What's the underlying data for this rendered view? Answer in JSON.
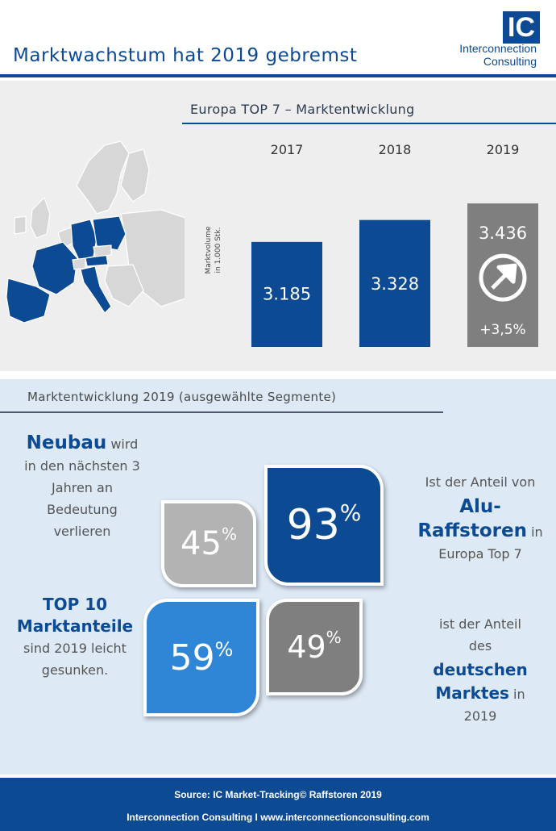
{
  "header": {
    "title": "Marktwachstum hat 2019 gebremst",
    "logo_mark": "IC",
    "logo_line1": "Interconnection",
    "logo_line2": "Consulting"
  },
  "chart_data": {
    "type": "bar",
    "title": "Europa TOP 7 – Marktentwicklung",
    "ylabel_line1": "Marktvolume",
    "ylabel_line2": "in 1.000 Stk.",
    "categories": [
      "2017",
      "2018",
      "2019"
    ],
    "values": [
      3185,
      3328,
      3436
    ],
    "value_labels": [
      "3.185",
      "3.328",
      "3.436"
    ],
    "colors": [
      "#0d4a94",
      "#0d4a94",
      "#7f7f7f"
    ],
    "growth_label": "+3,5%",
    "growth_icon": "arrow-up-right-circle-icon",
    "grid": false,
    "legend": "none"
  },
  "map": {
    "highlight_color": "#0d4a94",
    "base_color": "#d7d7d7"
  },
  "segments": {
    "title": "Marktentwicklung 2019 (ausgewählte Segmente)",
    "neubau": {
      "big": "Neubau",
      "rest_1": "wird",
      "lines": [
        "in den nächsten 3",
        "Jahren an",
        "Bedeutung",
        "verlieren"
      ]
    },
    "top10": {
      "line1": "TOP 10",
      "line2": "Marktanteile",
      "lines": [
        "sind 2019 leicht",
        "gesunken."
      ]
    },
    "alu": {
      "line_pre": "Ist der Anteil von",
      "big1": "Alu-",
      "big2": "Raffstoren",
      "in": "in",
      "line_post": "Europa Top 7"
    },
    "deutsch": {
      "line1": "ist der Anteil",
      "line2": "des",
      "big1": "deutschen",
      "big2": "Marktes",
      "in": "in",
      "year": "2019"
    },
    "tiles": [
      {
        "value": "45",
        "unit": "%",
        "color": "#b3b3b3"
      },
      {
        "value": "93",
        "unit": "%",
        "color": "#0d4a94"
      },
      {
        "value": "59",
        "unit": "%",
        "color": "#2f86d6"
      },
      {
        "value": "49",
        "unit": "%",
        "color": "#7f7f7f"
      }
    ]
  },
  "footer": {
    "source": "Source: IC Market-Tracking© Raffstoren 2019",
    "contact": "Interconnection Consulting I  www.interconnectionconsulting.com"
  }
}
